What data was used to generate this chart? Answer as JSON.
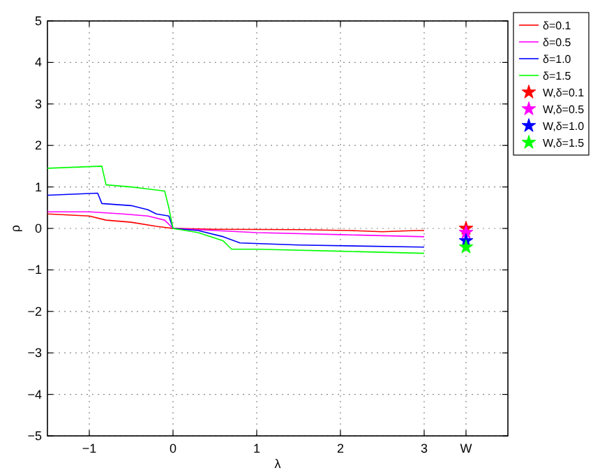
{
  "chart_data": {
    "type": "line",
    "xlabel": "λ",
    "ylabel": "ρ",
    "xlim": [
      -1.5,
      4
    ],
    "xticks": [
      -1,
      0,
      1,
      2,
      3,
      {
        "value": 3.5,
        "label": "W"
      }
    ],
    "ylim": [
      -5,
      5
    ],
    "yticks": [
      -5,
      -4,
      -3,
      -2,
      -1,
      0,
      1,
      2,
      3,
      4,
      5
    ],
    "grid": true,
    "legend": "top right",
    "series": [
      {
        "name": "δ=0.1",
        "color": "#ff0000",
        "x": [
          -1.5,
          -1.0,
          -0.8,
          -0.5,
          -0.2,
          0,
          0.5,
          1.5,
          2.1,
          2.5,
          2.9,
          3
        ],
        "values": [
          0.35,
          0.3,
          0.2,
          0.15,
          0.05,
          0,
          -0.02,
          -0.03,
          -0.05,
          -0.08,
          -0.05,
          -0.05
        ]
      },
      {
        "name": "δ=0.5",
        "color": "#ff00ff",
        "x": [
          -1.5,
          -1,
          -0.6,
          -0.3,
          -0.1,
          0,
          0.5,
          1,
          2,
          3
        ],
        "values": [
          0.4,
          0.4,
          0.35,
          0.3,
          0.2,
          0,
          -0.05,
          -0.1,
          -0.15,
          -0.2
        ]
      },
      {
        "name": "δ=1.0",
        "color": "#0000ff",
        "x": [
          -1.5,
          -0.9,
          -0.85,
          -0.5,
          -0.3,
          -0.2,
          -0.05,
          0,
          0.3,
          0.6,
          0.8,
          1.5,
          3
        ],
        "values": [
          0.8,
          0.85,
          0.6,
          0.55,
          0.45,
          0.35,
          0.3,
          0,
          -0.05,
          -0.2,
          -0.35,
          -0.4,
          -0.45
        ]
      },
      {
        "name": "δ=1.5",
        "color": "#00ff00",
        "x": [
          -1.5,
          -0.85,
          -0.8,
          -0.5,
          -0.3,
          -0.1,
          -0.05,
          0,
          0.3,
          0.6,
          0.7,
          1,
          2,
          3
        ],
        "values": [
          1.45,
          1.5,
          1.05,
          1.0,
          0.95,
          0.9,
          0.5,
          0,
          -0.1,
          -0.3,
          -0.5,
          -0.5,
          -0.55,
          -0.6
        ]
      },
      {
        "name": "W,δ=0.1",
        "type": "scatter",
        "marker": "star",
        "color": "#ff0000",
        "x": [
          3.5
        ],
        "values": [
          0.0
        ]
      },
      {
        "name": "W,δ=0.5",
        "type": "scatter",
        "marker": "star",
        "color": "#ff00ff",
        "x": [
          3.5
        ],
        "values": [
          -0.1
        ]
      },
      {
        "name": "W,δ=1.0",
        "type": "scatter",
        "marker": "star",
        "color": "#0000ff",
        "x": [
          3.5
        ],
        "values": [
          -0.3
        ]
      },
      {
        "name": "W,δ=1.5",
        "type": "scatter",
        "marker": "star",
        "color": "#00ff00",
        "x": [
          3.5
        ],
        "values": [
          -0.45
        ]
      }
    ]
  }
}
